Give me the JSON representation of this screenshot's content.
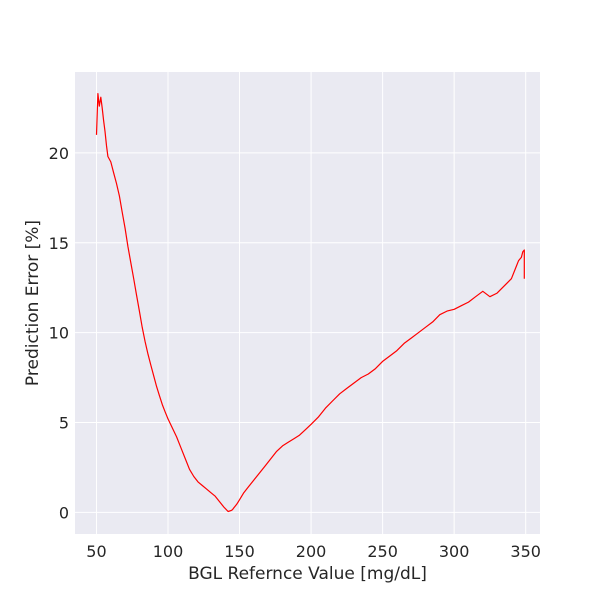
{
  "chart_data": {
    "type": "line",
    "title": "",
    "xlabel": "BGL Refernce Value [mg/dL]",
    "ylabel": "Prediction Error [%]",
    "xlim": [
      35,
      360
    ],
    "ylim": [
      -1.2,
      24.5
    ],
    "x_ticks": [
      50,
      100,
      150,
      200,
      250,
      300,
      350
    ],
    "y_ticks": [
      0,
      5,
      10,
      15,
      20
    ],
    "grid": true,
    "style": "seaborn-darkgrid",
    "line_color": "#ff0000",
    "background_color": "#eaeaf2",
    "series": [
      {
        "x": [
          50,
          51,
          52,
          53,
          54,
          55,
          56,
          57,
          58,
          60,
          62,
          64,
          66,
          68,
          70,
          72,
          74,
          76,
          78,
          80,
          82,
          84,
          86,
          88,
          90,
          92,
          94,
          96,
          98,
          100,
          103,
          106,
          109,
          112,
          115,
          118,
          121,
          124,
          127,
          130,
          133,
          136,
          139,
          142,
          144,
          145,
          146,
          148,
          150,
          153,
          156,
          160,
          164,
          168,
          172,
          176,
          180,
          184,
          188,
          192,
          196,
          200,
          205,
          210,
          215,
          220,
          225,
          230,
          235,
          240,
          245,
          250,
          255,
          260,
          265,
          270,
          275,
          280,
          285,
          290,
          295,
          300,
          305,
          310,
          315,
          320,
          325,
          330,
          335,
          340,
          343,
          345,
          347,
          348,
          349,
          349
        ],
        "y": [
          21.0,
          23.3,
          22.6,
          23.1,
          22.5,
          21.8,
          21.2,
          20.4,
          19.8,
          19.5,
          18.9,
          18.3,
          17.6,
          16.7,
          15.8,
          14.8,
          13.9,
          13.0,
          12.1,
          11.2,
          10.3,
          9.5,
          8.8,
          8.2,
          7.6,
          7.0,
          6.5,
          6.0,
          5.6,
          5.2,
          4.7,
          4.2,
          3.6,
          3.0,
          2.4,
          2.0,
          1.7,
          1.5,
          1.3,
          1.1,
          0.9,
          0.6,
          0.3,
          0.05,
          0.1,
          0.15,
          0.25,
          0.45,
          0.7,
          1.1,
          1.4,
          1.8,
          2.2,
          2.6,
          3.0,
          3.4,
          3.7,
          3.9,
          4.1,
          4.3,
          4.6,
          4.9,
          5.3,
          5.8,
          6.2,
          6.6,
          6.9,
          7.2,
          7.5,
          7.7,
          8.0,
          8.4,
          8.7,
          9.0,
          9.4,
          9.7,
          10.0,
          10.3,
          10.6,
          11.0,
          11.2,
          11.3,
          11.5,
          11.7,
          12.0,
          12.3,
          12.0,
          12.2,
          12.6,
          13.0,
          13.6,
          14.0,
          14.2,
          14.5,
          14.6,
          13.0
        ]
      }
    ]
  }
}
